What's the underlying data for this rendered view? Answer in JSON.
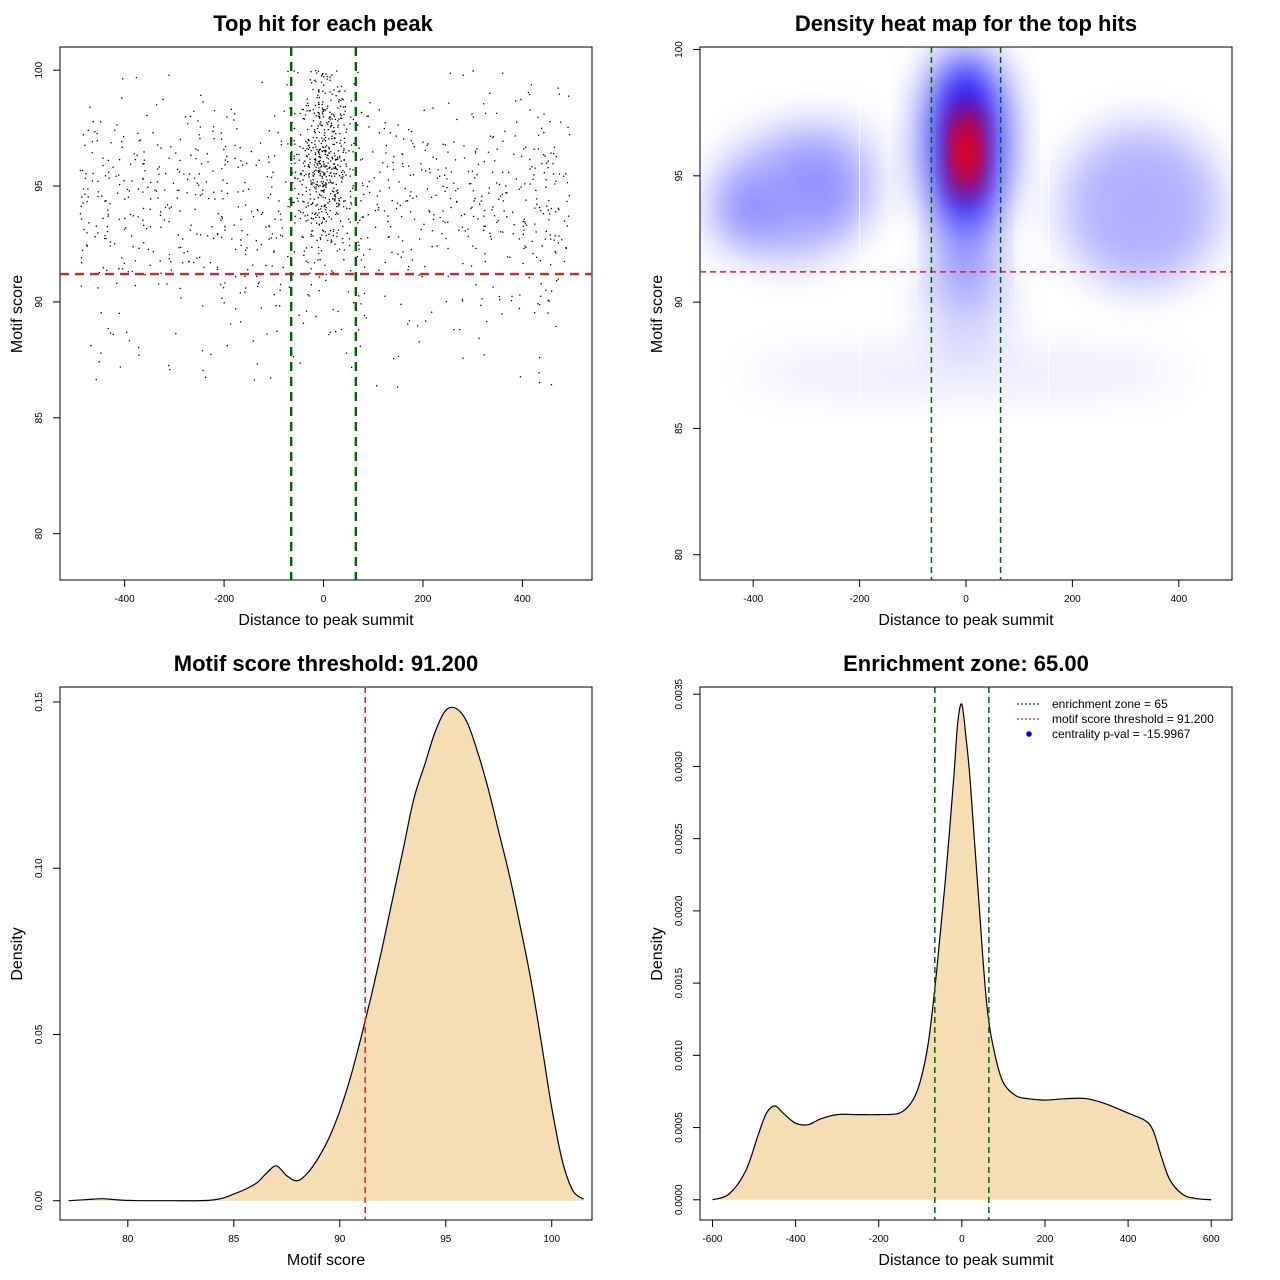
{
  "panels": [
    {
      "id": "scatter",
      "title": "Top hit for each peak",
      "xlabel": "Distance to peak summit",
      "ylabel": "Motif score"
    },
    {
      "id": "heatmap",
      "title": "Density heat map for the top hits",
      "xlabel": "Distance to peak summit",
      "ylabel": "Motif score"
    },
    {
      "id": "score_density",
      "title": "Motif score threshold: 91.200",
      "xlabel": "Motif score",
      "ylabel": "Density"
    },
    {
      "id": "distance_density",
      "title": "Enrichment zone: 65.00",
      "xlabel": "Distance to peak summit",
      "ylabel": "Density",
      "legend": [
        {
          "label": "enrichment zone = 65",
          "color": "#006400",
          "kind": "dotted-line"
        },
        {
          "label": "motif score threshold = 91.200",
          "color": "#dd2222",
          "kind": "dotted-line"
        },
        {
          "label": "centrality p-val = -15.9967",
          "color": "#0000ff",
          "kind": "point"
        }
      ]
    }
  ],
  "chart_data": [
    {
      "type": "scatter",
      "title": "Top hit for each peak",
      "xlabel": "Distance to peak summit",
      "ylabel": "Motif score",
      "xlim": [
        -530,
        540
      ],
      "ylim": [
        78,
        101
      ],
      "xticks": [
        -400,
        -200,
        0,
        200,
        400
      ],
      "yticks": [
        80,
        85,
        90,
        95,
        100
      ],
      "hlines": [
        {
          "y": 91.2,
          "color": "#dd2222",
          "style": "dashed"
        }
      ],
      "vlines": [
        {
          "x": -65,
          "color": "#006400",
          "style": "dashed"
        },
        {
          "x": 65,
          "color": "#006400",
          "style": "dashed"
        }
      ],
      "point_color": "#000000",
      "points_description_counts": {
        "total_approx": 1500
      }
    },
    {
      "type": "heatmap",
      "title": "Density heat map for the top hits",
      "xlabel": "Distance to peak summit",
      "ylabel": "Motif score",
      "xlim": [
        -500,
        500
      ],
      "ylim": [
        79,
        100.1
      ],
      "xticks": [
        -400,
        -200,
        0,
        200,
        400
      ],
      "yticks": [
        80,
        85,
        90,
        95,
        100
      ],
      "colors": [
        "#ffffff",
        "#0000ff",
        "#ff0000"
      ],
      "hlines": [
        {
          "y": 91.2,
          "color": "#dd2222",
          "style": "dashed"
        }
      ],
      "vlines": [
        {
          "x": -65,
          "color": "#006400",
          "style": "dashed"
        },
        {
          "x": 65,
          "color": "#006400",
          "style": "dashed"
        }
      ],
      "peak": {
        "x": 0,
        "y": 96
      }
    },
    {
      "type": "area",
      "title": "Motif score threshold: 91.200",
      "xlabel": "Motif score",
      "ylabel": "Density",
      "xlim": [
        76.8,
        101.9
      ],
      "ylim": [
        -0.0058,
        0.1545
      ],
      "xticks": [
        80,
        85,
        90,
        95,
        100
      ],
      "yticks": [
        0.0,
        0.05,
        0.1,
        0.15
      ],
      "ytick_labels": [
        "0.00",
        "0.05",
        "0.10",
        "0.15"
      ],
      "fill": "#f5deb3",
      "vlines": [
        {
          "x": 91.2,
          "color": "#dd2222",
          "style": "dashed"
        }
      ],
      "x": [
        77.2,
        78.0,
        78.8,
        79.6,
        80.5,
        82.0,
        84.0,
        85.0,
        86.0,
        86.5,
        87.0,
        87.5,
        88.0,
        88.5,
        89.0,
        89.5,
        90.0,
        90.5,
        91.0,
        91.5,
        92.0,
        92.5,
        93.0,
        93.5,
        94.0,
        94.5,
        95.0,
        95.5,
        96.0,
        96.5,
        97.0,
        97.5,
        98.0,
        98.5,
        99.0,
        99.5,
        100.0,
        100.5,
        101.0,
        101.5
      ],
      "y": [
        0.0,
        0.0003,
        0.0006,
        0.0002,
        0.0,
        0.0,
        0.0002,
        0.002,
        0.005,
        0.008,
        0.0105,
        0.0075,
        0.006,
        0.0085,
        0.013,
        0.019,
        0.027,
        0.037,
        0.049,
        0.062,
        0.076,
        0.091,
        0.106,
        0.121,
        0.131,
        0.141,
        0.1475,
        0.148,
        0.144,
        0.135,
        0.124,
        0.111,
        0.098,
        0.083,
        0.067,
        0.048,
        0.028,
        0.012,
        0.003,
        0.0005
      ]
    },
    {
      "type": "area",
      "title": "Enrichment zone: 65.00",
      "xlabel": "Distance to peak summit",
      "ylabel": "Density",
      "xlim": [
        -630,
        650
      ],
      "ylim": [
        -0.00014,
        0.00355
      ],
      "xticks": [
        -600,
        -400,
        -200,
        0,
        200,
        400,
        600
      ],
      "yticks": [
        0.0,
        0.0005,
        0.001,
        0.0015,
        0.002,
        0.0025,
        0.003,
        0.0035
      ],
      "ytick_labels": [
        "0.0000",
        "0.0005",
        "0.0010",
        "0.0015",
        "0.0020",
        "0.0025",
        "0.0030",
        "0.0035"
      ],
      "fill": "#f5deb3",
      "vlines": [
        {
          "x": -65,
          "color": "#006400",
          "style": "dashed"
        },
        {
          "x": 65,
          "color": "#006400",
          "style": "dashed"
        }
      ],
      "x": [
        -600,
        -560,
        -520,
        -490,
        -470,
        -450,
        -430,
        -400,
        -370,
        -340,
        -300,
        -250,
        -200,
        -150,
        -120,
        -100,
        -80,
        -60,
        -40,
        -20,
        -10,
        0,
        10,
        20,
        40,
        60,
        80,
        100,
        130,
        160,
        200,
        250,
        300,
        350,
        400,
        440,
        460,
        480,
        500,
        530,
        560,
        600
      ],
      "y": [
        0.0,
        4e-05,
        0.0002,
        0.00045,
        0.0006,
        0.00065,
        0.0006,
        0.00053,
        0.00052,
        0.00056,
        0.00059,
        0.00059,
        0.00059,
        0.0006,
        0.00068,
        0.00082,
        0.0011,
        0.0016,
        0.0022,
        0.0029,
        0.0033,
        0.00343,
        0.0032,
        0.0029,
        0.0021,
        0.00135,
        0.001,
        0.00081,
        0.00072,
        0.0007,
        0.00069,
        0.0007,
        0.0007,
        0.00066,
        0.0006,
        0.00055,
        0.00048,
        0.0003,
        0.00014,
        4e-05,
        1e-05,
        0.0
      ]
    }
  ]
}
